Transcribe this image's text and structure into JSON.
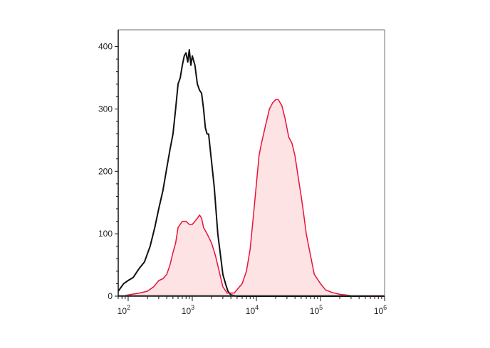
{
  "chart_data": {
    "type": "area",
    "title": "",
    "xlabel": "",
    "ylabel": "",
    "x_scale": "log",
    "xlim": [
      70,
      1000000
    ],
    "ylim": [
      0,
      420
    ],
    "x_ticks": [
      {
        "value": 100,
        "base": "10",
        "exp": "2"
      },
      {
        "value": 1000,
        "base": "10",
        "exp": "3"
      },
      {
        "value": 10000,
        "base": "10",
        "exp": "4"
      },
      {
        "value": 100000,
        "base": "10",
        "exp": "5"
      },
      {
        "value": 1000000,
        "base": "10",
        "exp": "6"
      }
    ],
    "y_ticks": [
      {
        "value": 0,
        "label": "0"
      },
      {
        "value": 100,
        "label": "100"
      },
      {
        "value": 200,
        "label": "200"
      },
      {
        "value": 300,
        "label": "300"
      },
      {
        "value": 400,
        "label": "400"
      }
    ],
    "grid": false,
    "series": [
      {
        "color": "#111111",
        "fill": "none",
        "points": [
          [
            70,
            8
          ],
          [
            85,
            20
          ],
          [
            100,
            25
          ],
          [
            120,
            30
          ],
          [
            150,
            45
          ],
          [
            180,
            55
          ],
          [
            220,
            80
          ],
          [
            260,
            110
          ],
          [
            300,
            140
          ],
          [
            350,
            170
          ],
          [
            400,
            205
          ],
          [
            450,
            235
          ],
          [
            500,
            260
          ],
          [
            550,
            300
          ],
          [
            600,
            340
          ],
          [
            650,
            350
          ],
          [
            700,
            370
          ],
          [
            750,
            385
          ],
          [
            800,
            390
          ],
          [
            850,
            375
          ],
          [
            900,
            395
          ],
          [
            950,
            370
          ],
          [
            1000,
            385
          ],
          [
            1100,
            370
          ],
          [
            1200,
            340
          ],
          [
            1300,
            330
          ],
          [
            1400,
            325
          ],
          [
            1500,
            300
          ],
          [
            1600,
            270
          ],
          [
            1700,
            260
          ],
          [
            1800,
            260
          ],
          [
            2000,
            215
          ],
          [
            2200,
            175
          ],
          [
            2500,
            100
          ],
          [
            2800,
            60
          ],
          [
            3000,
            35
          ],
          [
            3300,
            20
          ],
          [
            3600,
            8
          ],
          [
            4000,
            2
          ],
          [
            5000,
            0
          ],
          [
            10000,
            0
          ],
          [
            100000,
            0
          ],
          [
            1000000,
            0
          ]
        ]
      },
      {
        "color": "#e8123a",
        "fill": "#fde3e3",
        "points": [
          [
            80,
            0
          ],
          [
            100,
            2
          ],
          [
            150,
            5
          ],
          [
            200,
            8
          ],
          [
            250,
            15
          ],
          [
            300,
            25
          ],
          [
            350,
            28
          ],
          [
            400,
            35
          ],
          [
            450,
            50
          ],
          [
            500,
            70
          ],
          [
            550,
            85
          ],
          [
            600,
            110
          ],
          [
            700,
            120
          ],
          [
            800,
            120
          ],
          [
            900,
            115
          ],
          [
            1000,
            115
          ],
          [
            1100,
            120
          ],
          [
            1200,
            125
          ],
          [
            1300,
            130
          ],
          [
            1400,
            125
          ],
          [
            1500,
            110
          ],
          [
            1700,
            100
          ],
          [
            2000,
            85
          ],
          [
            2300,
            65
          ],
          [
            2700,
            35
          ],
          [
            3000,
            15
          ],
          [
            3500,
            5
          ],
          [
            4500,
            5
          ],
          [
            6000,
            20
          ],
          [
            7000,
            40
          ],
          [
            8000,
            75
          ],
          [
            9000,
            130
          ],
          [
            10000,
            180
          ],
          [
            11000,
            225
          ],
          [
            12000,
            245
          ],
          [
            14000,
            275
          ],
          [
            16000,
            300
          ],
          [
            18000,
            310
          ],
          [
            20000,
            315
          ],
          [
            22000,
            315
          ],
          [
            25000,
            305
          ],
          [
            28000,
            285
          ],
          [
            32000,
            255
          ],
          [
            36000,
            245
          ],
          [
            40000,
            225
          ],
          [
            45000,
            190
          ],
          [
            50000,
            160
          ],
          [
            55000,
            130
          ],
          [
            60000,
            100
          ],
          [
            70000,
            65
          ],
          [
            80000,
            35
          ],
          [
            100000,
            20
          ],
          [
            120000,
            10
          ],
          [
            150000,
            6
          ],
          [
            200000,
            3
          ],
          [
            300000,
            1
          ],
          [
            500000,
            0
          ],
          [
            1000000,
            0
          ]
        ]
      }
    ]
  }
}
